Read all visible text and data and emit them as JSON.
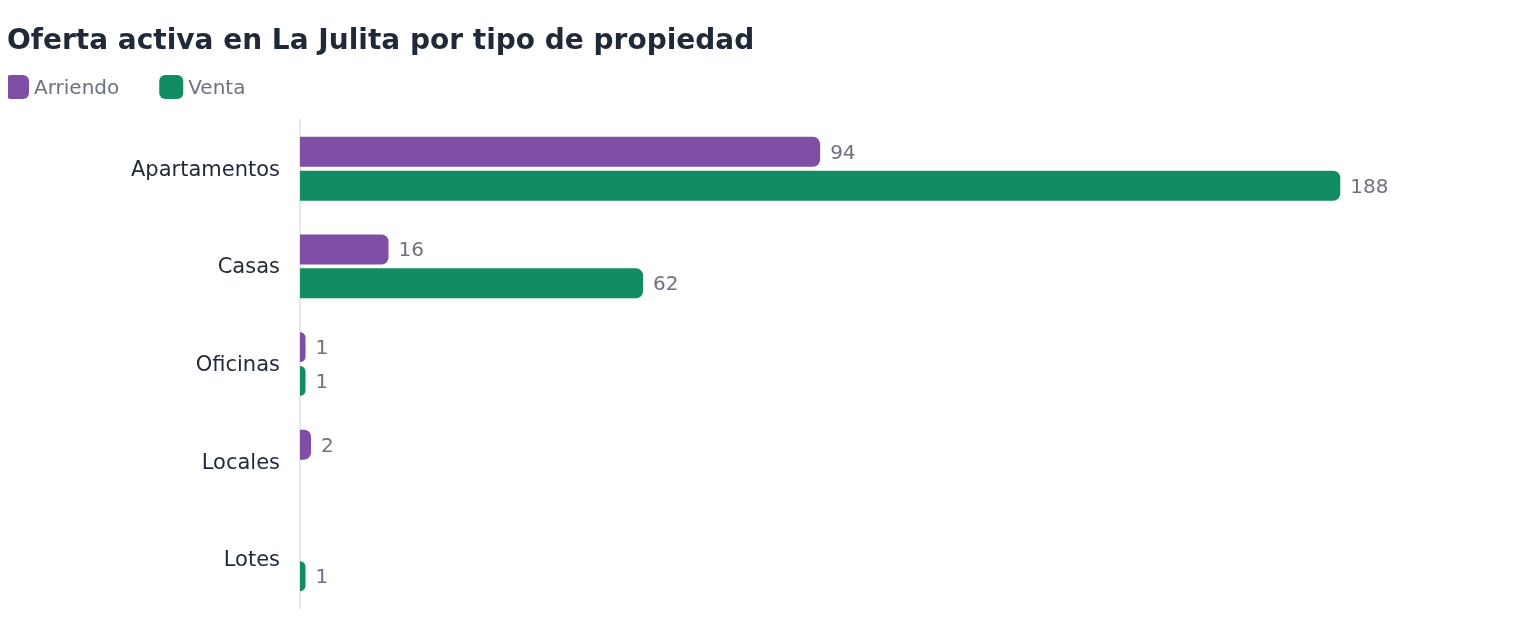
{
  "chart_data": {
    "type": "bar",
    "orientation": "horizontal",
    "title": "Oferta activa en La Julita por tipo de propiedad",
    "categories": [
      "Apartamentos",
      "Casas",
      "Oficinas",
      "Locales",
      "Lotes"
    ],
    "series": [
      {
        "name": "Arriendo",
        "color": "#7f4fa6",
        "values": [
          94,
          16,
          1,
          2,
          null
        ]
      },
      {
        "name": "Venta",
        "color": "#118c63",
        "values": [
          188,
          62,
          1,
          null,
          1
        ]
      }
    ],
    "data_labels": true,
    "legend": "top left"
  }
}
